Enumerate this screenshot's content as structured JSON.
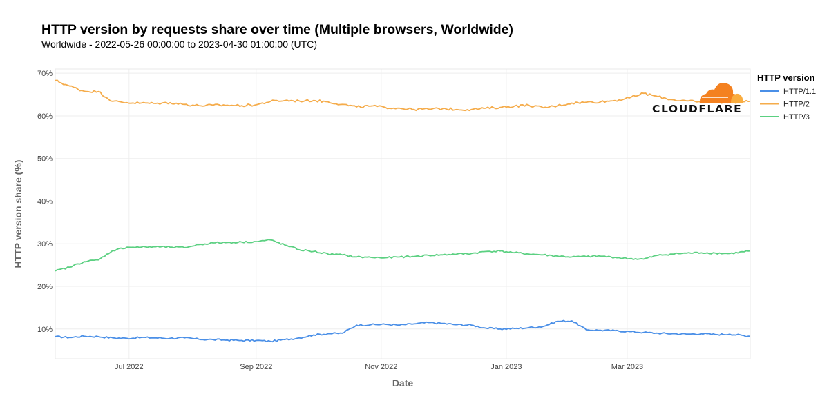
{
  "chart_data": {
    "type": "line",
    "title": "HTTP version by requests share over time (Multiple browsers, Worldwide)",
    "subtitle": "Worldwide - 2022-05-26 00:00:00 to 2023-04-30 01:00:00 (UTC)",
    "xlabel": "Date",
    "ylabel": "HTTP version share (%)",
    "xlim": [
      "2022-05-26",
      "2023-04-30"
    ],
    "ylim": [
      3,
      71
    ],
    "y_ticks": [
      10,
      20,
      30,
      40,
      50,
      60,
      70
    ],
    "y_tick_labels": [
      "10%",
      "20%",
      "30%",
      "40%",
      "50%",
      "60%",
      "70%"
    ],
    "x_ticks": [
      "2022-07-01",
      "2022-09-01",
      "2022-11-01",
      "2023-01-01",
      "2023-03-01"
    ],
    "x_tick_labels": [
      "Jul 2022",
      "Sep 2022",
      "Nov 2022",
      "Jan 2023",
      "Mar 2023"
    ],
    "grid": true,
    "legend": {
      "title": "HTTP version",
      "position": "right"
    },
    "logo_text": "CLOUDFLARE",
    "colors": {
      "HTTP/1.1": "#4a8fe7",
      "HTTP/2": "#f5ac4b",
      "HTTP/3": "#5bd081",
      "logo_orange": "#f48120",
      "logo_light": "#faad3f"
    },
    "x": [
      "2022-05-26",
      "2022-06-02",
      "2022-06-09",
      "2022-06-16",
      "2022-06-23",
      "2022-06-30",
      "2022-07-07",
      "2022-07-14",
      "2022-07-21",
      "2022-07-28",
      "2022-08-04",
      "2022-08-11",
      "2022-08-18",
      "2022-08-25",
      "2022-09-01",
      "2022-09-08",
      "2022-09-15",
      "2022-09-22",
      "2022-09-29",
      "2022-10-06",
      "2022-10-13",
      "2022-10-20",
      "2022-10-27",
      "2022-11-03",
      "2022-11-10",
      "2022-11-17",
      "2022-11-24",
      "2022-12-01",
      "2022-12-08",
      "2022-12-15",
      "2022-12-22",
      "2022-12-29",
      "2023-01-05",
      "2023-01-12",
      "2023-01-19",
      "2023-01-26",
      "2023-02-02",
      "2023-02-09",
      "2023-02-16",
      "2023-02-23",
      "2023-03-02",
      "2023-03-09",
      "2023-03-16",
      "2023-03-23",
      "2023-03-30",
      "2023-04-06",
      "2023-04-13",
      "2023-04-20",
      "2023-04-30"
    ],
    "series": [
      {
        "name": "HTTP/1.1",
        "values": [
          8.2,
          8.0,
          8.3,
          8.2,
          7.9,
          7.8,
          8.0,
          7.9,
          7.8,
          7.9,
          7.6,
          7.5,
          7.4,
          7.3,
          7.3,
          7.1,
          7.5,
          7.9,
          8.6,
          8.9,
          9.0,
          10.9,
          11.0,
          11.1,
          10.9,
          11.2,
          11.5,
          11.3,
          11.0,
          10.9,
          10.2,
          10.0,
          10.1,
          10.3,
          10.6,
          11.8,
          11.9,
          9.8,
          9.7,
          9.6,
          9.4,
          9.2,
          9.0,
          8.9,
          8.8,
          8.9,
          8.7,
          8.8,
          8.3
        ]
      },
      {
        "name": "HTTP/2",
        "values": [
          68.3,
          67.0,
          65.8,
          65.7,
          63.4,
          63.1,
          63.0,
          62.9,
          63.1,
          62.7,
          62.4,
          62.5,
          62.5,
          62.4,
          62.6,
          63.4,
          63.6,
          63.5,
          63.6,
          63.3,
          62.7,
          62.1,
          62.3,
          62.0,
          61.8,
          61.5,
          61.6,
          61.7,
          61.5,
          61.5,
          61.8,
          62.0,
          62.3,
          62.5,
          61.9,
          62.4,
          63.0,
          63.2,
          63.3,
          63.6,
          64.2,
          65.3,
          64.5,
          63.8,
          63.5,
          63.2,
          63.3,
          63.1,
          63.4
        ]
      },
      {
        "name": "HTTP/3",
        "values": [
          23.6,
          24.5,
          25.8,
          26.2,
          28.4,
          29.2,
          29.2,
          29.3,
          29.2,
          29.1,
          29.8,
          30.2,
          30.3,
          30.4,
          30.5,
          30.9,
          29.7,
          28.6,
          28.2,
          27.6,
          27.4,
          26.9,
          26.8,
          26.7,
          26.9,
          27.0,
          27.3,
          27.4,
          27.6,
          27.7,
          28.2,
          28.3,
          27.9,
          27.6,
          27.4,
          27.1,
          26.9,
          27.0,
          27.1,
          26.8,
          26.5,
          26.4,
          27.3,
          27.6,
          27.8,
          27.9,
          27.8,
          27.7,
          28.3
        ]
      }
    ]
  }
}
